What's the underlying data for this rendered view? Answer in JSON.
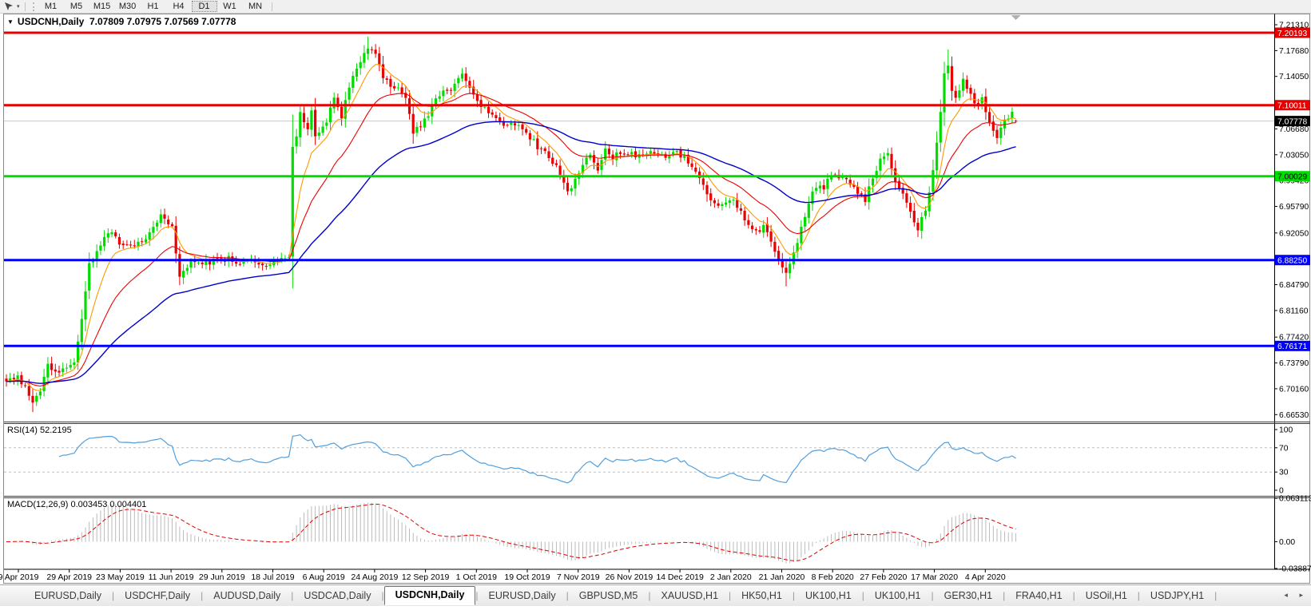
{
  "toolbar": {
    "cursor_tool": "crosshair-cursor",
    "timeframes": [
      "M1",
      "M5",
      "M15",
      "M30",
      "H1",
      "H4",
      "D1",
      "W1",
      "MN"
    ],
    "active_timeframe": "D1"
  },
  "title": {
    "symbol": "USDCNH,Daily",
    "ohlc_text": "7.07809 7.07975 7.07569 7.07778"
  },
  "indicators": {
    "rsi_label": "RSI(14)",
    "rsi_value": "52.2195",
    "macd_label": "MACD(12,26,9)",
    "macd_values": "0.003453 0.004401"
  },
  "bottom_tabs": {
    "items": [
      "EURUSD,Daily",
      "USDCHF,Daily",
      "AUDUSD,Daily",
      "USDCAD,Daily",
      "USDCNH,Daily",
      "EURUSD,Daily",
      "GBPUSD,M5",
      "XAUUSD,H1",
      "HK50,H1",
      "UK100,H1",
      "UK100,H1",
      "GER30,H1",
      "FRA40,H1",
      "USOil,H1",
      "USDJPY,H1"
    ],
    "active_index": 4,
    "scroll_left_icon": "◂",
    "scroll_right_icon": "▸"
  },
  "chart_data": {
    "type": "candlestick",
    "symbol": "USDCNH",
    "timeframe": "Daily",
    "current_ohlc": {
      "open": 7.07809,
      "high": 7.07975,
      "low": 7.07569,
      "close": 7.07778
    },
    "y_axis": {
      "tick_labels": [
        "7.21310",
        "7.17680",
        "7.14050",
        "7.06680",
        "7.03050",
        "6.99420",
        "6.95790",
        "6.92050",
        "6.84790",
        "6.81160",
        "6.77420",
        "6.73790",
        "6.70160",
        "6.66530"
      ],
      "price_top": 7.2277,
      "price_bottom": 6.6555
    },
    "x_axis": {
      "labels": [
        "9 Apr 2019",
        "29 Apr 2019",
        "23 May 2019",
        "11 Jun 2019",
        "29 Jun 2019",
        "18 Jul 2019",
        "6 Aug 2019",
        "24 Aug 2019",
        "12 Sep 2019",
        "1 Oct 2019",
        "19 Oct 2019",
        "7 Nov 2019",
        "26 Nov 2019",
        "14 Dec 2019",
        "2 Jan 2020",
        "21 Jan 2020",
        "8 Feb 2020",
        "27 Feb 2020",
        "17 Mar 2020",
        "4 Apr 2020"
      ]
    },
    "horizontal_lines": [
      {
        "label": "7.20193",
        "price": 7.20193,
        "color": "#e60000",
        "text_color": "#ffffff"
      },
      {
        "label": "7.10011",
        "price": 7.10011,
        "color": "#e60000",
        "text_color": "#ffffff"
      },
      {
        "label": "7.00029",
        "price": 7.00029,
        "color": "#00dc00",
        "text_color": "#000000"
      },
      {
        "label": "6.88250",
        "price": 6.8825,
        "color": "#0000ff",
        "text_color": "#ffffff"
      },
      {
        "label": "6.76171",
        "price": 6.76171,
        "color": "#0000ff",
        "text_color": "#ffffff"
      }
    ],
    "current_price": {
      "label": "7.07778",
      "price": 7.07778,
      "line_color": "#c8c8c8",
      "badge_bg": "#000000",
      "badge_fg": "#ffffff"
    },
    "candles": {
      "up_color": "#00dc00",
      "down_color": "#ea0000",
      "count": 269,
      "close_waypoints": [
        [
          0,
          6.715
        ],
        [
          3,
          6.72
        ],
        [
          5,
          6.703
        ],
        [
          7,
          6.682
        ],
        [
          9,
          6.7
        ],
        [
          11,
          6.733
        ],
        [
          14,
          6.728
        ],
        [
          18,
          6.737
        ],
        [
          20,
          6.8
        ],
        [
          22,
          6.875
        ],
        [
          25,
          6.905
        ],
        [
          28,
          6.923
        ],
        [
          31,
          6.9
        ],
        [
          34,
          6.905
        ],
        [
          38,
          6.918
        ],
        [
          41,
          6.943
        ],
        [
          44,
          6.928
        ],
        [
          46,
          6.862
        ],
        [
          49,
          6.88
        ],
        [
          52,
          6.877
        ],
        [
          56,
          6.882
        ],
        [
          59,
          6.885
        ],
        [
          62,
          6.878
        ],
        [
          65,
          6.882
        ],
        [
          68,
          6.876
        ],
        [
          71,
          6.879
        ],
        [
          74,
          6.885
        ],
        [
          75,
          6.888
        ],
        [
          76,
          7.045
        ],
        [
          77,
          7.058
        ],
        [
          78,
          7.088
        ],
        [
          80,
          7.062
        ],
        [
          81,
          7.096
        ],
        [
          82,
          7.058
        ],
        [
          83,
          7.064
        ],
        [
          85,
          7.078
        ],
        [
          87,
          7.112
        ],
        [
          89,
          7.085
        ],
        [
          92,
          7.143
        ],
        [
          94,
          7.158
        ],
        [
          96,
          7.183
        ],
        [
          98,
          7.173
        ],
        [
          100,
          7.142
        ],
        [
          102,
          7.13
        ],
        [
          104,
          7.125
        ],
        [
          106,
          7.108
        ],
        [
          108,
          7.062
        ],
        [
          110,
          7.07
        ],
        [
          112,
          7.088
        ],
        [
          114,
          7.112
        ],
        [
          117,
          7.119
        ],
        [
          119,
          7.128
        ],
        [
          121,
          7.143
        ],
        [
          125,
          7.102
        ],
        [
          128,
          7.09
        ],
        [
          132,
          7.072
        ],
        [
          135,
          7.073
        ],
        [
          138,
          7.062
        ],
        [
          141,
          7.042
        ],
        [
          144,
          7.028
        ],
        [
          147,
          7.004
        ],
        [
          149,
          6.976
        ],
        [
          151,
          6.998
        ],
        [
          153,
          7.018
        ],
        [
          155,
          7.027
        ],
        [
          157,
          7.012
        ],
        [
          159,
          7.038
        ],
        [
          161,
          7.028
        ],
        [
          164,
          7.034
        ],
        [
          168,
          7.03
        ],
        [
          171,
          7.038
        ],
        [
          174,
          7.028
        ],
        [
          177,
          7.034
        ],
        [
          180,
          7.029
        ],
        [
          184,
          6.996
        ],
        [
          187,
          6.966
        ],
        [
          190,
          6.96
        ],
        [
          193,
          6.966
        ],
        [
          196,
          6.942
        ],
        [
          199,
          6.921
        ],
        [
          201,
          6.931
        ],
        [
          204,
          6.896
        ],
        [
          207,
          6.861
        ],
        [
          210,
          6.908
        ],
        [
          213,
          6.962
        ],
        [
          215,
          6.988
        ],
        [
          217,
          6.984
        ],
        [
          219,
          7.003
        ],
        [
          222,
          6.997
        ],
        [
          224,
          6.989
        ],
        [
          226,
          6.977
        ],
        [
          228,
          6.968
        ],
        [
          230,
          6.999
        ],
        [
          232,
          7.023
        ],
        [
          234,
          7.031
        ],
        [
          236,
          6.996
        ],
        [
          240,
          6.951
        ],
        [
          242,
          6.927
        ],
        [
          244,
          6.953
        ],
        [
          246,
          7.008
        ],
        [
          248,
          7.088
        ],
        [
          249,
          7.142
        ],
        [
          250,
          7.159
        ],
        [
          251,
          7.121
        ],
        [
          252,
          7.109
        ],
        [
          254,
          7.138
        ],
        [
          255,
          7.124
        ],
        [
          257,
          7.101
        ],
        [
          259,
          7.109
        ],
        [
          260,
          7.094
        ],
        [
          262,
          7.063
        ],
        [
          263,
          7.058
        ],
        [
          265,
          7.079
        ],
        [
          267,
          7.087
        ],
        [
          268,
          7.07778
        ]
      ]
    },
    "moving_averages": [
      {
        "name": "fast",
        "period": 8,
        "color": "#ff9900"
      },
      {
        "name": "medium",
        "period": 21,
        "color": "#ee0000"
      },
      {
        "name": "slow",
        "period": 55,
        "color": "#0000cc"
      }
    ],
    "rsi": {
      "period": 14,
      "value": 52.2195,
      "axis_labels": [
        100,
        70,
        30,
        0
      ],
      "levels": [
        70,
        30
      ],
      "color": "#4f9fdf"
    },
    "macd": {
      "params": [
        12,
        26,
        9
      ],
      "macd_value": 0.003453,
      "signal_value": 0.004401,
      "axis_max": 0.063113,
      "axis_min": -0.038872,
      "axis_zero_label": "0.00",
      "histogram_color": "#b4b4b4",
      "signal_color": "#e00000"
    }
  }
}
